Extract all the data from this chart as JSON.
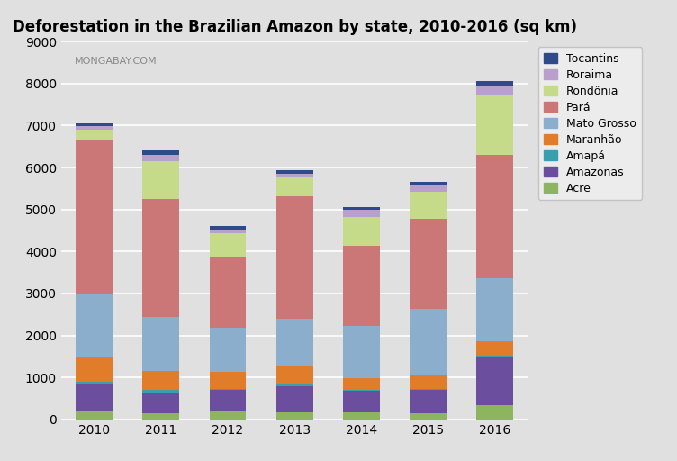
{
  "title": "Deforestation in the Brazilian Amazon by state, 2010-2016 (sq km)",
  "watermark": "MONGABAY.COM",
  "years": [
    2010,
    2011,
    2012,
    2013,
    2014,
    2015,
    2016
  ],
  "states": [
    "Acre",
    "Amazonas",
    "Amapá",
    "Maranhão",
    "Mato Grosso",
    "Pará",
    "Rondônia",
    "Roraima",
    "Tocantins"
  ],
  "colors": [
    "#8db560",
    "#6b4f9e",
    "#3a9fad",
    "#e07c2a",
    "#8aaecc",
    "#cc7777",
    "#c5db8a",
    "#b9a0cc",
    "#2e4a8a"
  ],
  "data": {
    "Acre": [
      200,
      150,
      200,
      175,
      175,
      150,
      350
    ],
    "Amazonas": [
      650,
      500,
      500,
      625,
      500,
      550,
      1150
    ],
    "Amapá": [
      50,
      50,
      30,
      30,
      30,
      30,
      30
    ],
    "Maranhão": [
      600,
      450,
      400,
      425,
      275,
      350,
      330
    ],
    "Mato Grosso": [
      1500,
      1300,
      1050,
      1150,
      1250,
      1550,
      1500
    ],
    "Pará": [
      3650,
      2800,
      1700,
      2900,
      1900,
      2150,
      2950
    ],
    "Rondônia": [
      250,
      900,
      550,
      450,
      700,
      650,
      1400
    ],
    "Roraima": [
      80,
      150,
      100,
      100,
      170,
      150,
      230
    ],
    "Tocantins": [
      80,
      100,
      70,
      75,
      50,
      70,
      110
    ]
  },
  "ylim": [
    0,
    9000
  ],
  "yticks": [
    0,
    1000,
    2000,
    3000,
    4000,
    5000,
    6000,
    7000,
    8000,
    9000
  ],
  "bg_color": "#e0e0e0",
  "plot_bg_color": "#e0e0e0",
  "legend_bg_color": "#f0f0f0",
  "figsize": [
    7.52,
    5.12
  ],
  "dpi": 100
}
